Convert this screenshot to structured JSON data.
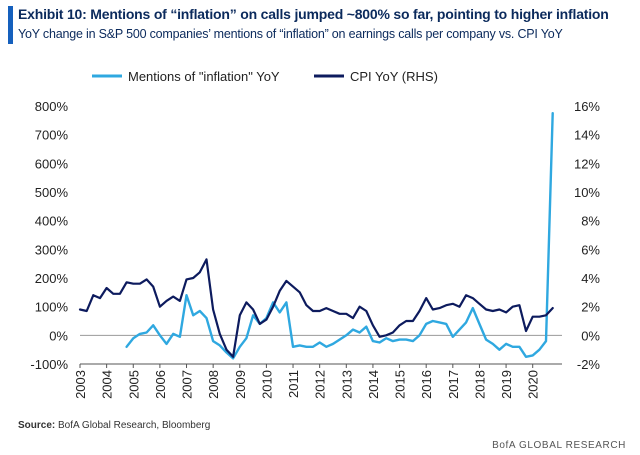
{
  "header": {
    "title": "Exhibit 10: Mentions of “inflation” on calls jumped ~800% so far, pointing to higher inflation",
    "subtitle": "YoY change in S&P 500 companies’ mentions of “inflation” on earnings calls per company vs. CPI YoY"
  },
  "footer": {
    "source_label": "Source:",
    "source_text": "BofA Global Research, Bloomberg",
    "brand": "BofA GLOBAL RESEARCH"
  },
  "colors": {
    "mentions": "#2fa8e0",
    "cpi": "#0d1b5e",
    "accent": "#1560bd"
  },
  "chart_data": {
    "type": "line",
    "title": "",
    "xlabel": "",
    "ylabel_left": "",
    "ylabel_right": "",
    "x_range": [
      2003,
      2021.1
    ],
    "x_ticks": [
      "2003",
      "2004",
      "2005",
      "2006",
      "2007",
      "2008",
      "2009",
      "2010",
      "2011",
      "2012",
      "2013",
      "2014",
      "2015",
      "2016",
      "2017",
      "2018",
      "2019",
      "2020"
    ],
    "y_left": {
      "min": -100,
      "max": 800,
      "step": 100,
      "ticks": [
        "-100%",
        "0%",
        "100%",
        "200%",
        "300%",
        "400%",
        "500%",
        "600%",
        "700%",
        "800%"
      ]
    },
    "y_right": {
      "min": -2,
      "max": 16,
      "step": 2,
      "ticks": [
        "-2%",
        "0%",
        "2%",
        "4%",
        "6%",
        "8%",
        "10%",
        "12%",
        "14%",
        "16%"
      ]
    },
    "legend_placement": "top",
    "grid": false,
    "series": [
      {
        "name": "Mentions of \"inflation\" YoY",
        "axis": "left",
        "points": [
          [
            2004.75,
            -40
          ],
          [
            2005.0,
            -10
          ],
          [
            2005.25,
            5
          ],
          [
            2005.5,
            10
          ],
          [
            2005.75,
            35
          ],
          [
            2006.0,
            0
          ],
          [
            2006.25,
            -30
          ],
          [
            2006.5,
            5
          ],
          [
            2006.75,
            -5
          ],
          [
            2007.0,
            140
          ],
          [
            2007.25,
            70
          ],
          [
            2007.5,
            85
          ],
          [
            2007.75,
            60
          ],
          [
            2008.0,
            -20
          ],
          [
            2008.25,
            -35
          ],
          [
            2008.5,
            -60
          ],
          [
            2008.75,
            -80
          ],
          [
            2009.0,
            -40
          ],
          [
            2009.25,
            -10
          ],
          [
            2009.5,
            70
          ],
          [
            2009.75,
            40
          ],
          [
            2010.0,
            60
          ],
          [
            2010.25,
            115
          ],
          [
            2010.5,
            80
          ],
          [
            2010.75,
            115
          ],
          [
            2011.0,
            -40
          ],
          [
            2011.25,
            -35
          ],
          [
            2011.5,
            -40
          ],
          [
            2011.75,
            -40
          ],
          [
            2012.0,
            -25
          ],
          [
            2012.25,
            -40
          ],
          [
            2012.5,
            -30
          ],
          [
            2012.75,
            -15
          ],
          [
            2013.0,
            0
          ],
          [
            2013.25,
            20
          ],
          [
            2013.5,
            10
          ],
          [
            2013.75,
            30
          ],
          [
            2014.0,
            -20
          ],
          [
            2014.25,
            -25
          ],
          [
            2014.5,
            -10
          ],
          [
            2014.75,
            -20
          ],
          [
            2015.0,
            -15
          ],
          [
            2015.25,
            -15
          ],
          [
            2015.5,
            -20
          ],
          [
            2015.75,
            0
          ],
          [
            2016.0,
            40
          ],
          [
            2016.25,
            50
          ],
          [
            2016.5,
            45
          ],
          [
            2016.75,
            40
          ],
          [
            2017.0,
            -5
          ],
          [
            2017.25,
            20
          ],
          [
            2017.5,
            45
          ],
          [
            2017.75,
            95
          ],
          [
            2018.0,
            40
          ],
          [
            2018.25,
            -15
          ],
          [
            2018.5,
            -30
          ],
          [
            2018.75,
            -50
          ],
          [
            2019.0,
            -30
          ],
          [
            2019.25,
            -40
          ],
          [
            2019.5,
            -40
          ],
          [
            2019.75,
            -75
          ],
          [
            2020.0,
            -70
          ],
          [
            2020.25,
            -50
          ],
          [
            2020.5,
            -20
          ],
          [
            2020.75,
            775
          ]
        ]
      },
      {
        "name": "CPI YoY (RHS)",
        "axis": "right",
        "points": [
          [
            2003.0,
            1.8
          ],
          [
            2003.25,
            1.7
          ],
          [
            2003.5,
            2.8
          ],
          [
            2003.75,
            2.6
          ],
          [
            2004.0,
            3.3
          ],
          [
            2004.25,
            2.9
          ],
          [
            2004.5,
            2.9
          ],
          [
            2004.75,
            3.7
          ],
          [
            2005.0,
            3.6
          ],
          [
            2005.25,
            3.6
          ],
          [
            2005.5,
            3.9
          ],
          [
            2005.75,
            3.4
          ],
          [
            2006.0,
            2.0
          ],
          [
            2006.25,
            2.4
          ],
          [
            2006.5,
            2.7
          ],
          [
            2006.75,
            2.4
          ],
          [
            2007.0,
            3.9
          ],
          [
            2007.25,
            4.0
          ],
          [
            2007.5,
            4.4
          ],
          [
            2007.75,
            5.3
          ],
          [
            2008.0,
            1.8
          ],
          [
            2008.25,
            0.1
          ],
          [
            2008.5,
            -1.0
          ],
          [
            2008.75,
            -1.5
          ],
          [
            2009.0,
            1.4
          ],
          [
            2009.25,
            2.3
          ],
          [
            2009.5,
            1.8
          ],
          [
            2009.75,
            0.8
          ],
          [
            2010.0,
            1.1
          ],
          [
            2010.25,
            2.0
          ],
          [
            2010.5,
            3.1
          ],
          [
            2010.75,
            3.8
          ],
          [
            2011.0,
            3.4
          ],
          [
            2011.25,
            3.0
          ],
          [
            2011.5,
            2.1
          ],
          [
            2011.75,
            1.7
          ],
          [
            2012.0,
            1.7
          ],
          [
            2012.25,
            1.9
          ],
          [
            2012.5,
            1.7
          ],
          [
            2012.75,
            1.5
          ],
          [
            2013.0,
            1.5
          ],
          [
            2013.25,
            1.2
          ],
          [
            2013.5,
            2.0
          ],
          [
            2013.75,
            1.7
          ],
          [
            2014.0,
            0.7
          ],
          [
            2014.25,
            -0.1
          ],
          [
            2014.5,
            0.0
          ],
          [
            2014.75,
            0.2
          ],
          [
            2015.0,
            0.7
          ],
          [
            2015.25,
            1.0
          ],
          [
            2015.5,
            1.0
          ],
          [
            2015.75,
            1.7
          ],
          [
            2016.0,
            2.6
          ],
          [
            2016.25,
            1.8
          ],
          [
            2016.5,
            1.9
          ],
          [
            2016.75,
            2.1
          ],
          [
            2017.0,
            2.2
          ],
          [
            2017.25,
            2.0
          ],
          [
            2017.5,
            2.8
          ],
          [
            2017.75,
            2.6
          ],
          [
            2018.0,
            2.2
          ],
          [
            2018.25,
            1.8
          ],
          [
            2018.5,
            1.7
          ],
          [
            2018.75,
            1.8
          ],
          [
            2019.0,
            1.6
          ],
          [
            2019.25,
            2.0
          ],
          [
            2019.5,
            2.1
          ],
          [
            2019.75,
            0.3
          ],
          [
            2020.0,
            1.3
          ],
          [
            2020.25,
            1.3
          ],
          [
            2020.5,
            1.4
          ],
          [
            2020.75,
            1.9
          ]
        ]
      }
    ]
  }
}
